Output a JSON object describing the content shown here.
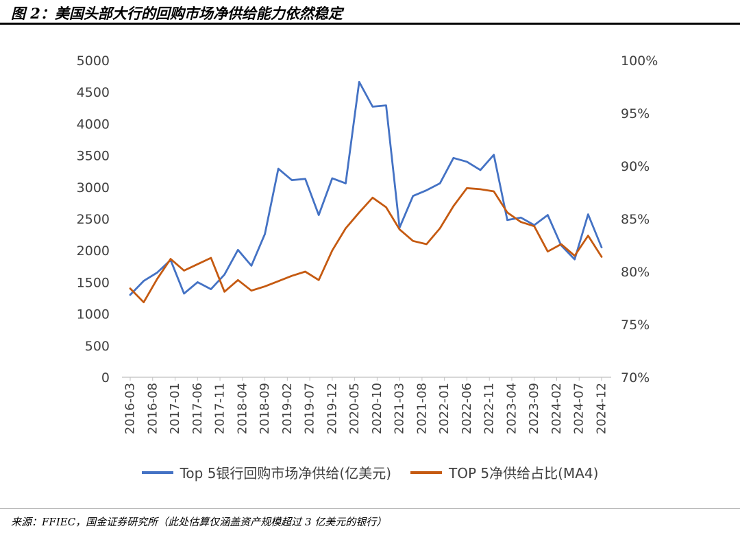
{
  "header": {
    "title": "图 2：美国头部大行的回购市场净供给能力依然稳定"
  },
  "footer": {
    "source": "来源：FFIEC，国金证券研究所（此处估算仅涵盖资产规模超过 3 亿美元的银行）"
  },
  "chart_data": {
    "type": "line",
    "title": "",
    "xlabel": "",
    "ylabel_left": "",
    "ylabel_right": "",
    "grid": false,
    "legend_position": "bottom",
    "x_labels": [
      "2016-03",
      "2016-08",
      "2017-01",
      "2017-06",
      "2017-11",
      "2018-04",
      "2018-09",
      "2019-02",
      "2019-07",
      "2019-12",
      "2020-05",
      "2020-10",
      "2021-03",
      "2021-08",
      "2022-01",
      "2022-06",
      "2022-11",
      "2023-04",
      "2023-09",
      "2024-02",
      "2024-07",
      "2024-12"
    ],
    "left_axis": {
      "min": 0,
      "max": 5000,
      "step": 500,
      "suffix": ""
    },
    "right_axis": {
      "min": 70,
      "max": 100,
      "step": 5,
      "suffix": "%"
    },
    "series": [
      {
        "name": "Top 5银行回购市场净供给(亿美元)",
        "axis": "left",
        "color": "#4472C4",
        "values": [
          1300,
          1520,
          1650,
          1850,
          1320,
          1500,
          1390,
          1620,
          2010,
          1760,
          2260,
          3290,
          3110,
          3130,
          2560,
          3140,
          3060,
          4660,
          4270,
          4290,
          2360,
          2860,
          2950,
          3060,
          3460,
          3400,
          3270,
          3510,
          2480,
          2520,
          2400,
          2560,
          2080,
          1860,
          2570,
          2050
        ]
      },
      {
        "name": "TOP 5净供给占比(MA4)",
        "axis": "right",
        "color": "#C55A11",
        "values": [
          78.4,
          77.1,
          79.3,
          81.2,
          80.1,
          80.7,
          81.3,
          78.1,
          79.2,
          78.2,
          78.6,
          79.1,
          79.6,
          80.0,
          79.2,
          82.0,
          84.1,
          85.6,
          87.0,
          86.1,
          84.0,
          82.9,
          82.6,
          84.1,
          86.2,
          87.9,
          87.8,
          87.6,
          85.6,
          84.7,
          84.3,
          81.9,
          82.6,
          81.5,
          83.4,
          81.4
        ]
      }
    ],
    "axis_text_color": "#404040"
  }
}
